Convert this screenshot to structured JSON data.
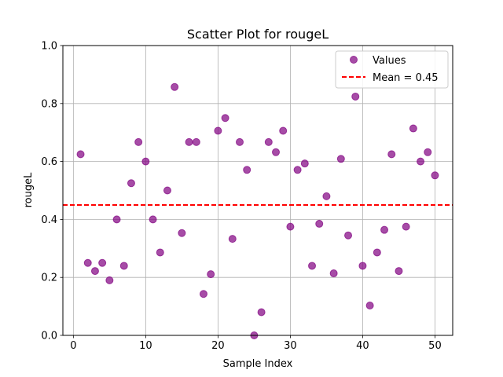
{
  "chart_data": {
    "type": "scatter",
    "title": "Scatter Plot for rougeL",
    "xlabel": "Sample Index",
    "ylabel": "rougeL",
    "xlim": [
      -1.45,
      52.45
    ],
    "ylim": [
      0.0,
      1.0
    ],
    "xticks": [
      0,
      10,
      20,
      30,
      40,
      50
    ],
    "xtick_labels": [
      "0",
      "10",
      "20",
      "30",
      "40",
      "50"
    ],
    "yticks": [
      0.0,
      0.2,
      0.4,
      0.6,
      0.8,
      1.0
    ],
    "ytick_labels": [
      "0.0",
      "0.2",
      "0.4",
      "0.6",
      "0.8",
      "1.0"
    ],
    "grid": true,
    "legend_position": "top-right",
    "series": [
      {
        "name": "Values",
        "color": "#800080",
        "x": [
          1,
          2,
          3,
          4,
          5,
          6,
          7,
          8,
          9,
          10,
          11,
          12,
          13,
          14,
          15,
          16,
          17,
          18,
          19,
          20,
          21,
          22,
          23,
          24,
          25,
          26,
          27,
          28,
          29,
          30,
          31,
          32,
          33,
          34,
          35,
          36,
          37,
          38,
          39,
          40,
          41,
          42,
          43,
          44,
          45,
          46,
          47,
          48,
          49,
          50
        ],
        "y": [
          0.625,
          0.25,
          0.222,
          0.25,
          0.19,
          0.4,
          0.24,
          0.525,
          0.667,
          0.6,
          0.4,
          0.286,
          0.5,
          0.857,
          0.353,
          0.667,
          0.667,
          0.143,
          0.211,
          0.706,
          0.75,
          0.333,
          0.667,
          0.571,
          0.0,
          0.08,
          0.667,
          0.632,
          0.706,
          0.375,
          0.571,
          0.593,
          0.24,
          0.385,
          0.48,
          0.214,
          0.609,
          0.345,
          0.824,
          0.24,
          0.103,
          0.286,
          0.364,
          0.625,
          0.222,
          0.375,
          0.714,
          0.6,
          0.632,
          0.552
        ]
      }
    ],
    "mean_line": {
      "label": "Mean = 0.45",
      "value": 0.45,
      "color": "#ff0000"
    }
  }
}
